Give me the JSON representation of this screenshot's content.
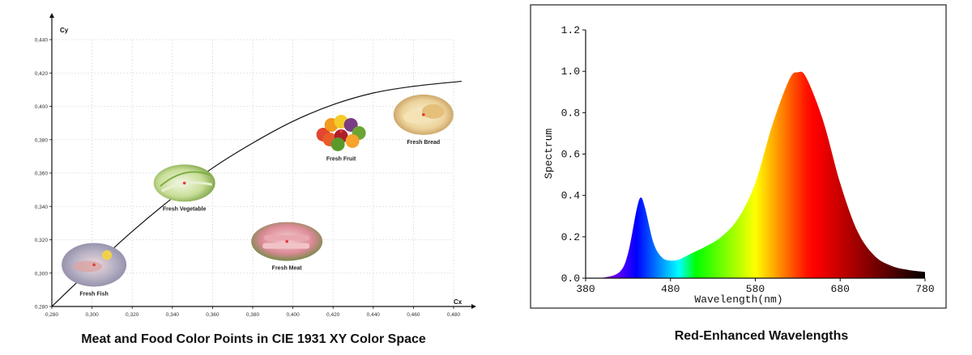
{
  "chart_data": [
    {
      "type": "scatter",
      "title": "Meat and Food Color Points in CIE 1931 XY Color Space",
      "xlabel": "Cx",
      "ylabel": "Cy",
      "xlim": [
        0.28,
        0.48
      ],
      "ylim": [
        0.28,
        0.44
      ],
      "x_ticks": [
        "0,280",
        "0,300",
        "0,320",
        "0,340",
        "0,360",
        "0,380",
        "0,400",
        "0,420",
        "0,440",
        "0,460",
        "0,480"
      ],
      "y_ticks": [
        "0,280",
        "0,300",
        "0,320",
        "0,340",
        "0,360",
        "0,380",
        "0,400",
        "0,420",
        "0,440"
      ],
      "grid": true,
      "curve": {
        "x": [
          0.28,
          0.3,
          0.32,
          0.34,
          0.36,
          0.38,
          0.4,
          0.42,
          0.44,
          0.46,
          0.484
        ],
        "y": [
          0.28,
          0.303,
          0.325,
          0.345,
          0.363,
          0.378,
          0.391,
          0.401,
          0.408,
          0.412,
          0.415
        ]
      },
      "points": [
        {
          "label": "Fresh Fish",
          "x": 0.301,
          "y": 0.305,
          "kind": "fish",
          "color": "#e03c3c"
        },
        {
          "label": "Fresh Vegetable",
          "x": 0.346,
          "y": 0.354,
          "kind": "vegetable",
          "color": "#e03c3c"
        },
        {
          "label": "Fresh Meat",
          "x": 0.397,
          "y": 0.319,
          "kind": "meat",
          "color": "#e03c3c"
        },
        {
          "label": "Fresh Fruit",
          "x": 0.424,
          "y": 0.385,
          "kind": "fruit",
          "color": "#e03c3c"
        },
        {
          "label": "Fresh Bread",
          "x": 0.465,
          "y": 0.395,
          "kind": "bread",
          "color": "#e03c3c"
        }
      ]
    },
    {
      "type": "area",
      "title": "Red-Enhanced Wavelengths",
      "xlabel": "Wavelength(nm)",
      "ylabel": "Spectrum",
      "xlim": [
        380,
        780
      ],
      "ylim": [
        0,
        1.2
      ],
      "x_ticks": [
        "380",
        "480",
        "580",
        "680",
        "780"
      ],
      "y_ticks": [
        "0.0",
        "0.2",
        "0.4",
        "0.6",
        "0.8",
        "1.0",
        "1.2"
      ],
      "series": [
        {
          "x": [
            380,
            400,
            420,
            430,
            440,
            445,
            450,
            460,
            470,
            480,
            490,
            500,
            510,
            520,
            540,
            560,
            580,
            600,
            620,
            630,
            640,
            660,
            680,
            700,
            720,
            740,
            760,
            780
          ],
          "y": [
            0.0,
            0.002,
            0.03,
            0.12,
            0.33,
            0.39,
            0.34,
            0.17,
            0.1,
            0.085,
            0.09,
            0.11,
            0.13,
            0.15,
            0.2,
            0.29,
            0.46,
            0.74,
            0.96,
            0.995,
            0.97,
            0.76,
            0.46,
            0.23,
            0.11,
            0.06,
            0.04,
            0.03
          ]
        }
      ]
    }
  ]
}
